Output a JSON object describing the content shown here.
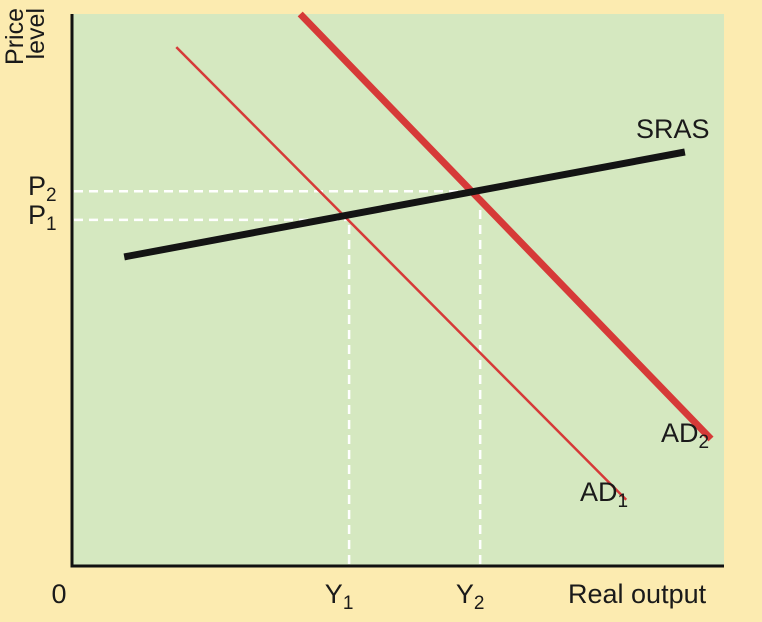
{
  "colors": {
    "background": "#fcebb0",
    "plot_area": "#d5e8c0",
    "axis": "#111111",
    "sras": "#141414",
    "ad": "#d63a38",
    "guide": "#ffffff"
  },
  "chart_data": {
    "type": "line",
    "xlabel": "Real output",
    "ylabel": [
      "Price",
      "level"
    ],
    "origin_label": "0",
    "grid": false,
    "legend": "none",
    "xlim": [
      0,
      100
    ],
    "ylim": [
      0,
      100
    ],
    "series": [
      {
        "name": "SRAS",
        "label_main": "SRAS",
        "label_sub": "",
        "key": "sras",
        "points": [
          [
            8,
            56
          ],
          [
            94,
            75
          ]
        ]
      },
      {
        "name": "AD1",
        "label_main": "AD",
        "label_sub": "1",
        "key": "ad1",
        "points": [
          [
            16,
            94
          ],
          [
            85,
            12
          ]
        ]
      },
      {
        "name": "AD2",
        "label_main": "AD",
        "label_sub": "2",
        "key": "ad2",
        "points": [
          [
            35,
            100
          ],
          [
            98,
            23
          ]
        ]
      }
    ],
    "x_markers": [
      {
        "main": "Y",
        "sub": "1",
        "x": 42.5
      },
      {
        "main": "Y",
        "sub": "2",
        "x": 62.6
      }
    ],
    "y_markers": [
      {
        "main": "P",
        "sub": "2",
        "y": 67.9
      },
      {
        "main": "P",
        "sub": "1",
        "y": 62.7
      }
    ],
    "equilibria": [
      {
        "x": 42.5,
        "y": 62.7
      },
      {
        "x": 62.6,
        "y": 67.9
      }
    ]
  }
}
